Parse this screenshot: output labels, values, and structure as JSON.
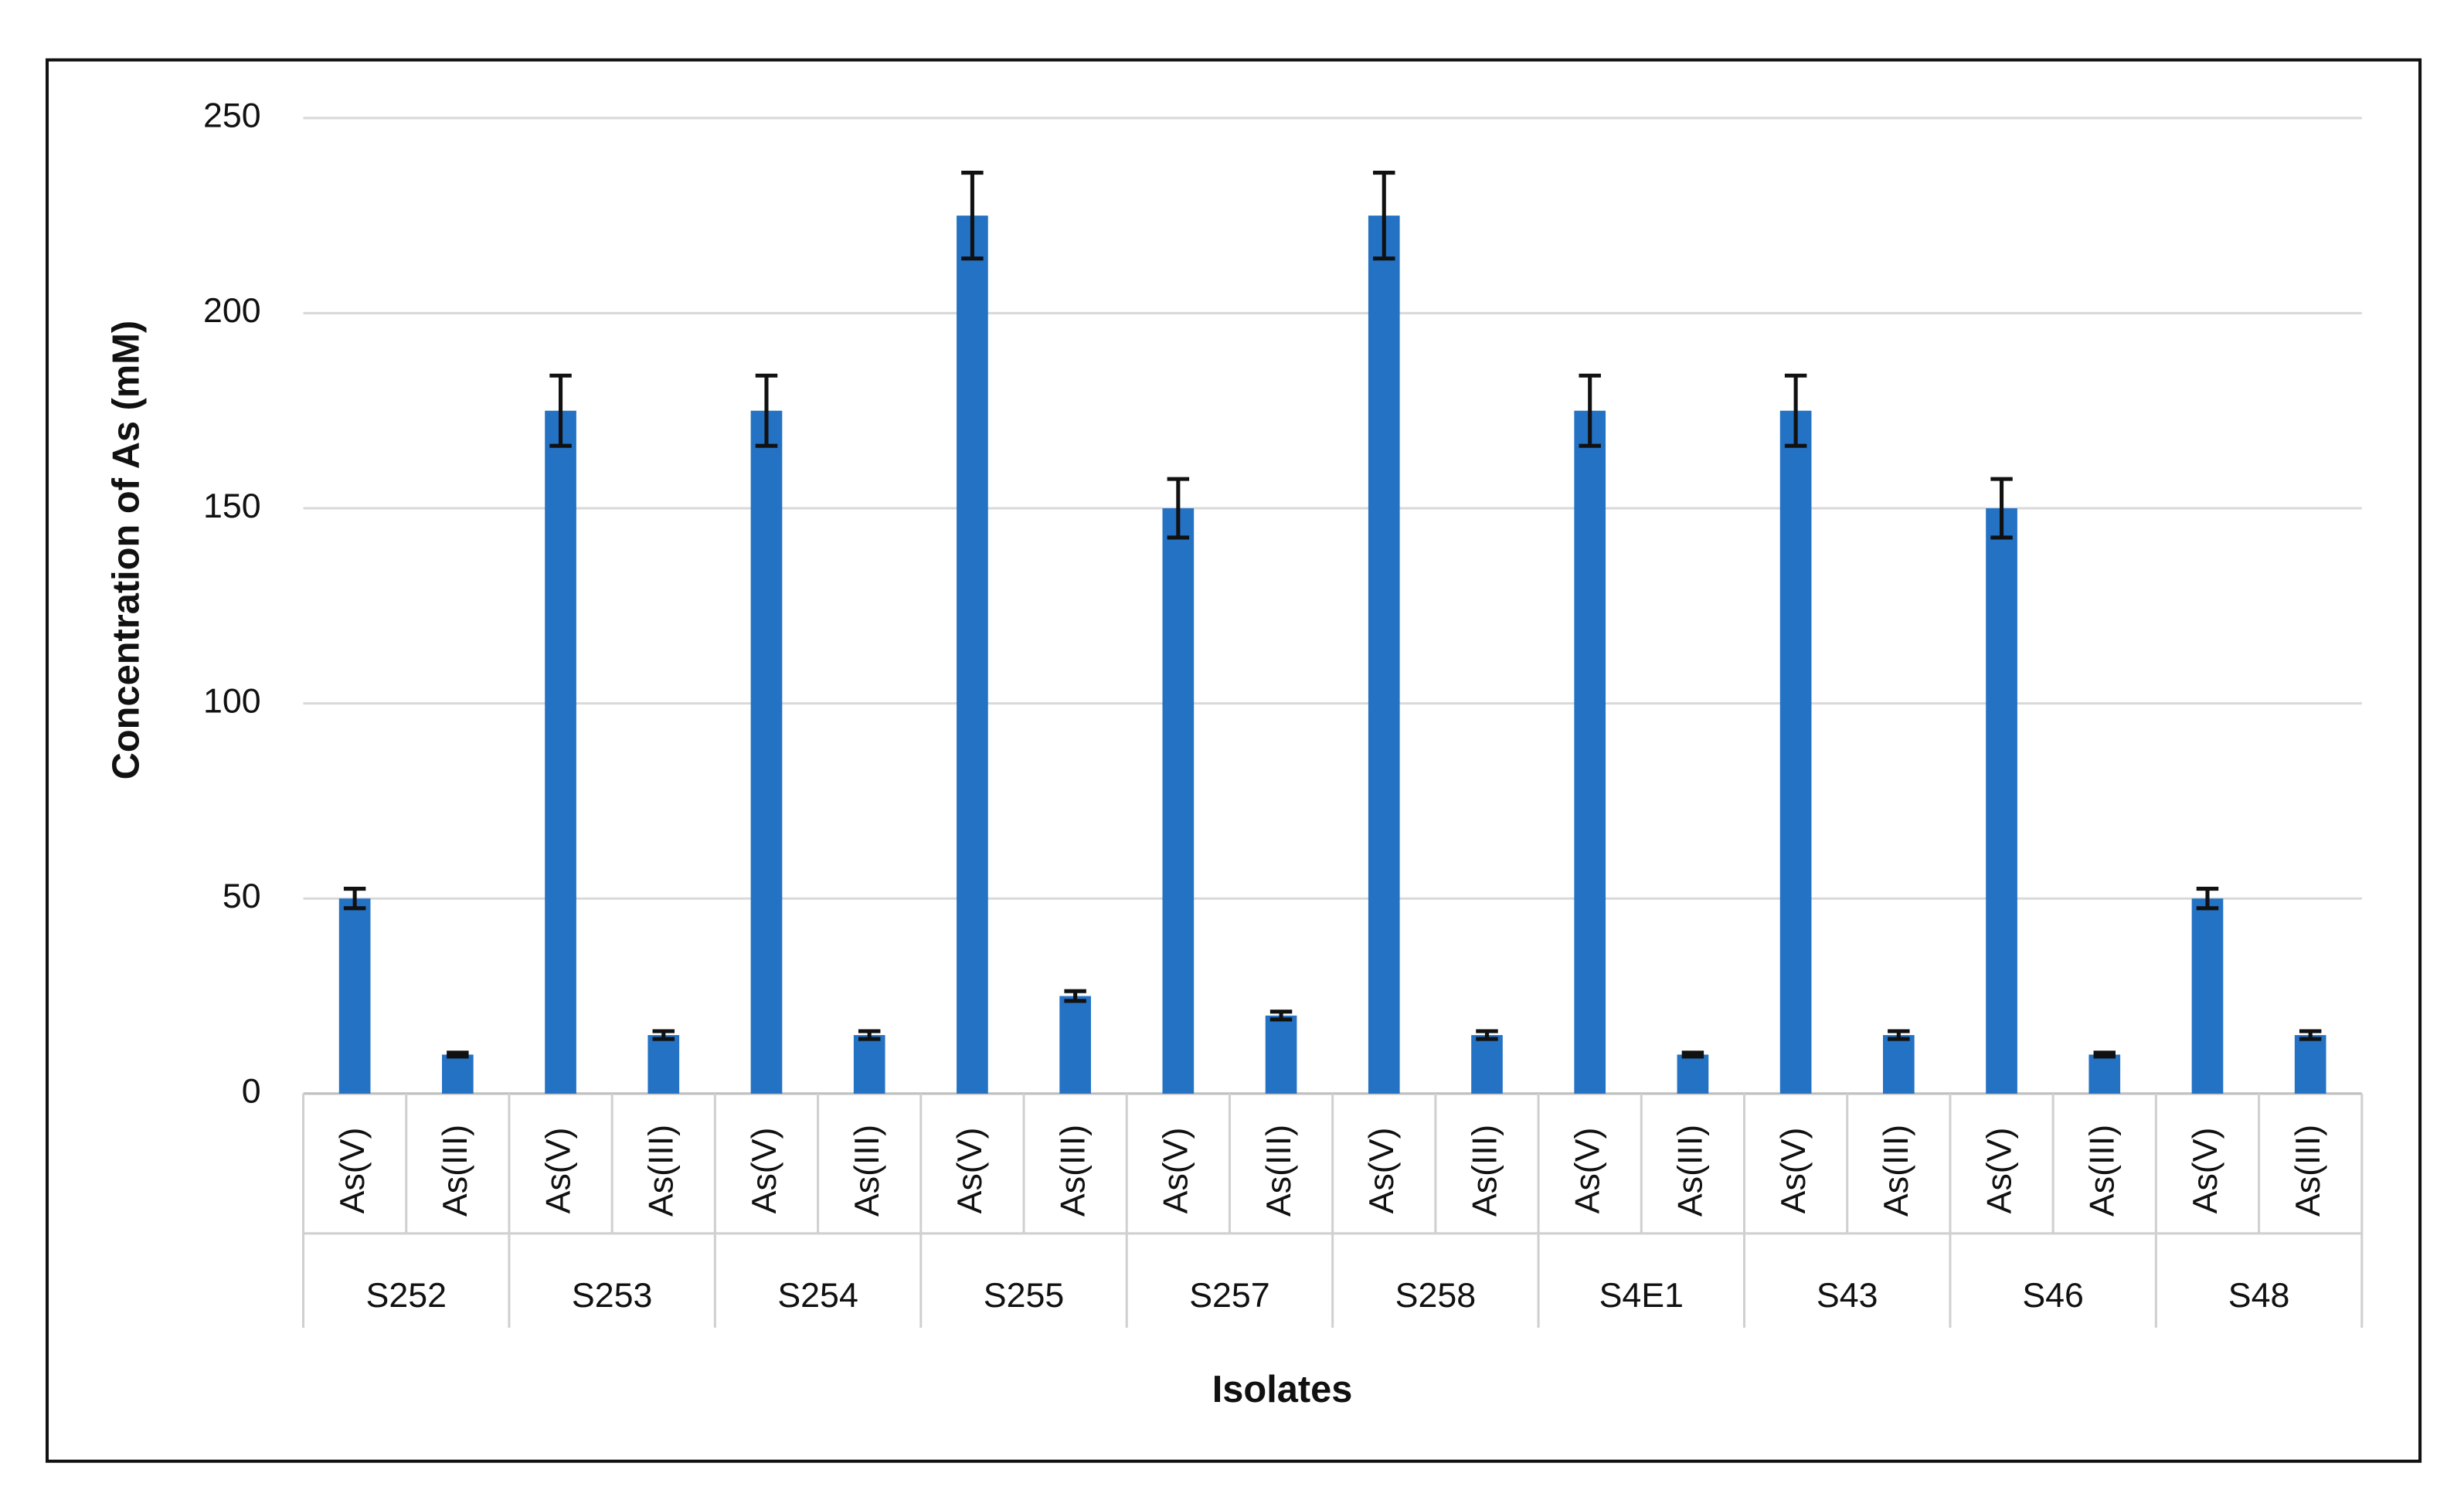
{
  "chart_data": {
    "type": "bar",
    "x_label": "Isolates",
    "y_label": "Concentration of As (mM)",
    "categories": [
      "As(V)",
      "As(III)",
      "As(V)",
      "As(III)",
      "As(V)",
      "As(III)",
      "As(V)",
      "As(III)",
      "As(V)",
      "As(III)",
      "As(V)",
      "As(III)",
      "As(V)",
      "As(III)",
      "As(V)",
      "As(III)",
      "As(V)",
      "As(III)",
      "As(V)",
      "As(III)"
    ],
    "groups": [
      "S252",
      "S253",
      "S254",
      "S255",
      "S257",
      "S258",
      "S4E1",
      "S43",
      "S46",
      "S48"
    ],
    "values": [
      50,
      10,
      175,
      15,
      175,
      15,
      225,
      25,
      150,
      20,
      225,
      15,
      175,
      10,
      175,
      15,
      150,
      10,
      50,
      15
    ],
    "errors": [
      2.5,
      0.5,
      9,
      1,
      9,
      1,
      11,
      1.25,
      7.5,
      1,
      11,
      1,
      9,
      0.5,
      9,
      1,
      7.5,
      0.5,
      2.5,
      1
    ],
    "color": "#2372c4",
    "ylim": [
      0,
      250
    ],
    "yticks": [
      0,
      50,
      100,
      150,
      200,
      250
    ],
    "grid": true
  }
}
